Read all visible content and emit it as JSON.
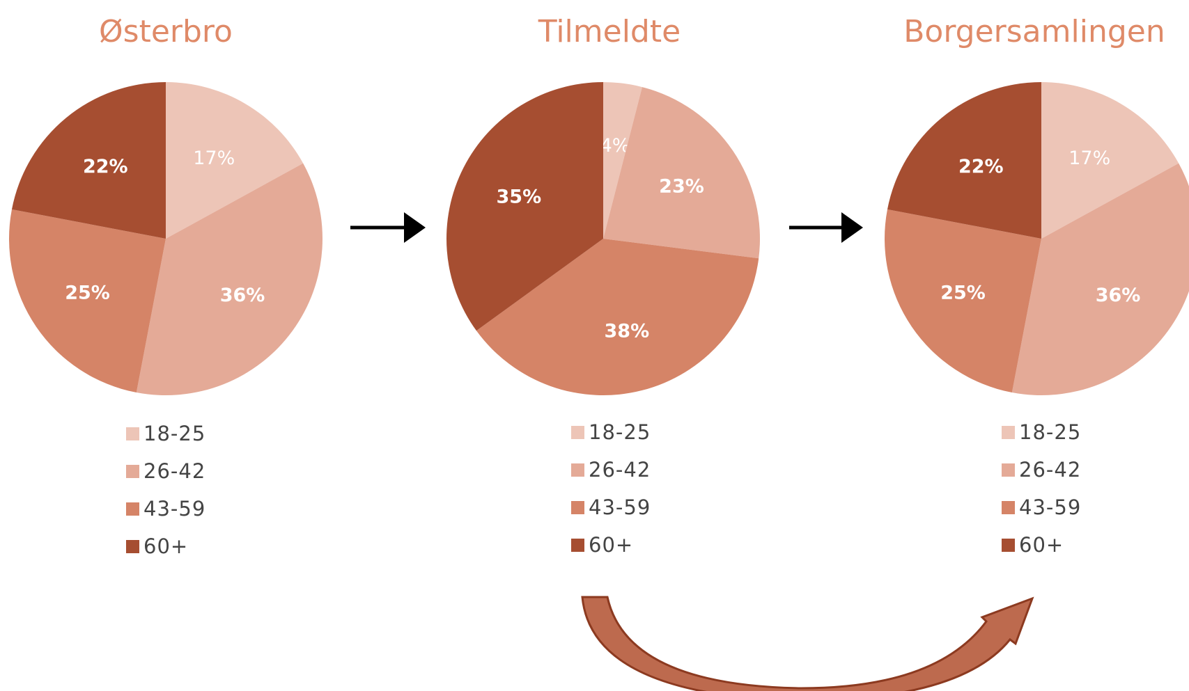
{
  "chart_data": [
    {
      "type": "pie",
      "title": "Østerbro",
      "categories": [
        "18-25",
        "26-42",
        "43-59",
        "60+"
      ],
      "values": [
        17,
        36,
        25,
        22
      ],
      "labels": [
        "17%",
        "36%",
        "25%",
        "22%"
      ]
    },
    {
      "type": "pie",
      "title": "Tilmeldte",
      "categories": [
        "18-25",
        "26-42",
        "43-59",
        "60+"
      ],
      "values": [
        4,
        23,
        38,
        35
      ],
      "labels": [
        "4%",
        "23%",
        "38%",
        "35%"
      ]
    },
    {
      "type": "pie",
      "title": "Borgersamlingen",
      "categories": [
        "18-25",
        "26-42",
        "43-59",
        "60+"
      ],
      "values": [
        17,
        36,
        25,
        22
      ],
      "labels": [
        "17%",
        "36%",
        "25%",
        "22%"
      ]
    }
  ],
  "colors": [
    "#edc5b7",
    "#e4aa97",
    "#d58467",
    "#a64e31"
  ],
  "arrow_colors": {
    "straight": "#000000",
    "curved": "#bd6a4e",
    "curved_outline": "#8c3a20"
  }
}
